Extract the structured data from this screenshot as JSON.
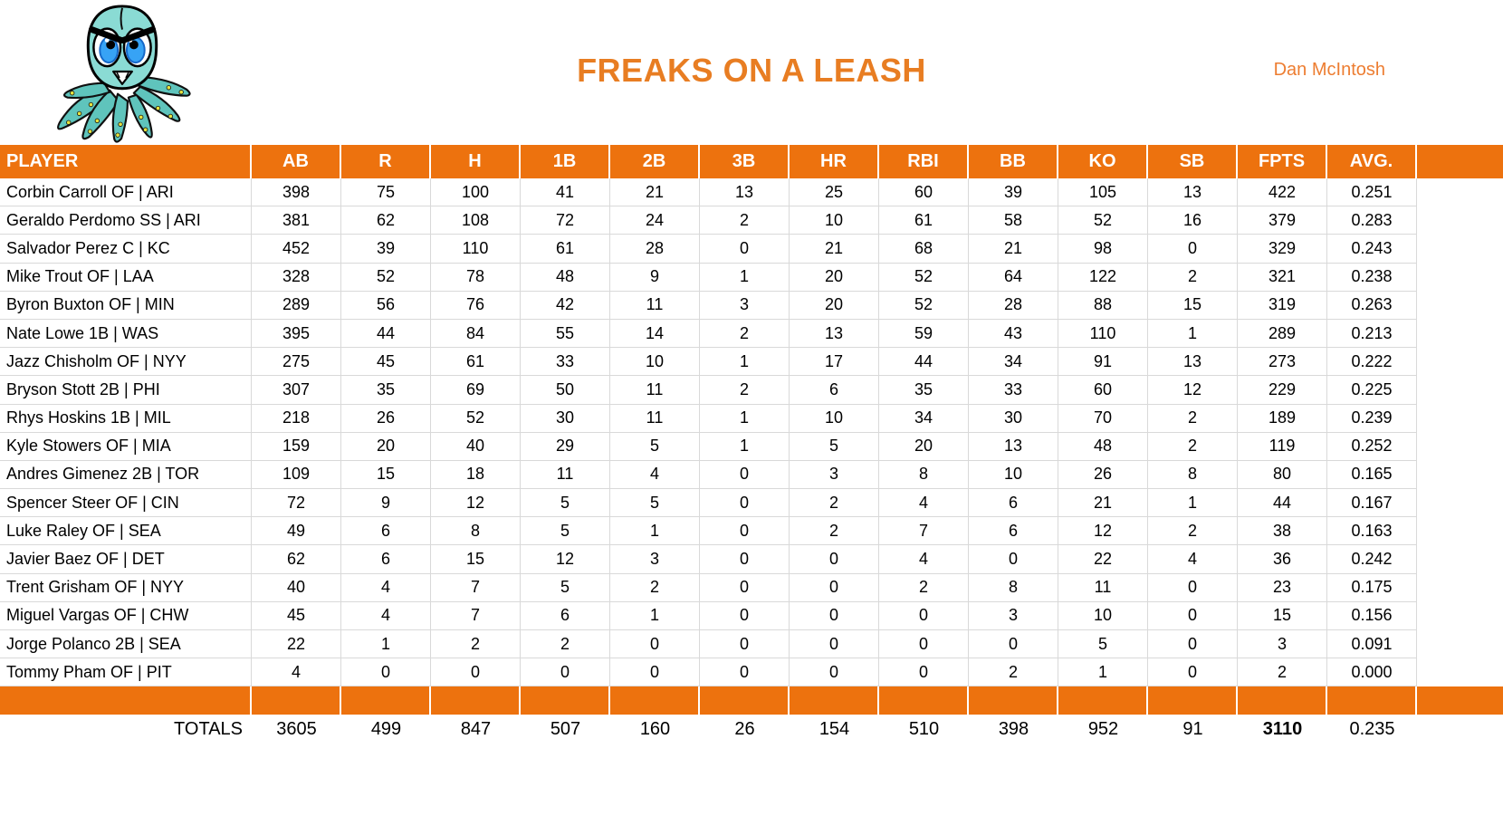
{
  "header": {
    "title": "FREAKS ON A LEASH",
    "owner": "Dan McIntosh",
    "logo_icon": "angry-octopus"
  },
  "colors": {
    "table_orange": "#ED720E",
    "title_orange": "#E87D22",
    "owner_orange": "#ED7D31",
    "grid_line": "#D9D9D9",
    "logo_teal": "#8ADBD4",
    "logo_tentacle": "#5FC4BC",
    "logo_eye_blue": "#37A3F5",
    "logo_sucker_yellow": "#E6E33F"
  },
  "table": {
    "columns": [
      "PLAYER",
      "AB",
      "R",
      "H",
      "1B",
      "2B",
      "3B",
      "HR",
      "RBI",
      "BB",
      "KO",
      "SB",
      "FPTS",
      "AVG."
    ],
    "rows": [
      {
        "player": "Corbin Carroll OF | ARI",
        "values": [
          "398",
          "75",
          "100",
          "41",
          "21",
          "13",
          "25",
          "60",
          "39",
          "105",
          "13",
          "422",
          "0.251"
        ]
      },
      {
        "player": "Geraldo Perdomo SS | ARI",
        "values": [
          "381",
          "62",
          "108",
          "72",
          "24",
          "2",
          "10",
          "61",
          "58",
          "52",
          "16",
          "379",
          "0.283"
        ]
      },
      {
        "player": "Salvador Perez C | KC",
        "values": [
          "452",
          "39",
          "110",
          "61",
          "28",
          "0",
          "21",
          "68",
          "21",
          "98",
          "0",
          "329",
          "0.243"
        ]
      },
      {
        "player": "Mike Trout OF | LAA",
        "values": [
          "328",
          "52",
          "78",
          "48",
          "9",
          "1",
          "20",
          "52",
          "64",
          "122",
          "2",
          "321",
          "0.238"
        ]
      },
      {
        "player": "Byron Buxton OF | MIN",
        "values": [
          "289",
          "56",
          "76",
          "42",
          "11",
          "3",
          "20",
          "52",
          "28",
          "88",
          "15",
          "319",
          "0.263"
        ]
      },
      {
        "player": "Nate Lowe 1B | WAS",
        "values": [
          "395",
          "44",
          "84",
          "55",
          "14",
          "2",
          "13",
          "59",
          "43",
          "110",
          "1",
          "289",
          "0.213"
        ]
      },
      {
        "player": "Jazz Chisholm OF | NYY",
        "values": [
          "275",
          "45",
          "61",
          "33",
          "10",
          "1",
          "17",
          "44",
          "34",
          "91",
          "13",
          "273",
          "0.222"
        ]
      },
      {
        "player": "Bryson Stott 2B | PHI",
        "values": [
          "307",
          "35",
          "69",
          "50",
          "11",
          "2",
          "6",
          "35",
          "33",
          "60",
          "12",
          "229",
          "0.225"
        ]
      },
      {
        "player": "Rhys Hoskins 1B | MIL",
        "values": [
          "218",
          "26",
          "52",
          "30",
          "11",
          "1",
          "10",
          "34",
          "30",
          "70",
          "2",
          "189",
          "0.239"
        ]
      },
      {
        "player": "Kyle Stowers OF | MIA",
        "values": [
          "159",
          "20",
          "40",
          "29",
          "5",
          "1",
          "5",
          "20",
          "13",
          "48",
          "2",
          "119",
          "0.252"
        ]
      },
      {
        "player": "Andres Gimenez 2B | TOR",
        "values": [
          "109",
          "15",
          "18",
          "11",
          "4",
          "0",
          "3",
          "8",
          "10",
          "26",
          "8",
          "80",
          "0.165"
        ]
      },
      {
        "player": "Spencer Steer OF | CIN",
        "values": [
          "72",
          "9",
          "12",
          "5",
          "5",
          "0",
          "2",
          "4",
          "6",
          "21",
          "1",
          "44",
          "0.167"
        ]
      },
      {
        "player": "Luke Raley OF | SEA",
        "values": [
          "49",
          "6",
          "8",
          "5",
          "1",
          "0",
          "2",
          "7",
          "6",
          "12",
          "2",
          "38",
          "0.163"
        ]
      },
      {
        "player": "Javier Baez OF | DET",
        "values": [
          "62",
          "6",
          "15",
          "12",
          "3",
          "0",
          "0",
          "4",
          "0",
          "22",
          "4",
          "36",
          "0.242"
        ]
      },
      {
        "player": "Trent Grisham OF | NYY",
        "values": [
          "40",
          "4",
          "7",
          "5",
          "2",
          "0",
          "0",
          "2",
          "8",
          "11",
          "0",
          "23",
          "0.175"
        ]
      },
      {
        "player": "Miguel Vargas OF | CHW",
        "values": [
          "45",
          "4",
          "7",
          "6",
          "1",
          "0",
          "0",
          "0",
          "3",
          "10",
          "0",
          "15",
          "0.156"
        ]
      },
      {
        "player": "Jorge Polanco 2B | SEA",
        "values": [
          "22",
          "1",
          "2",
          "2",
          "0",
          "0",
          "0",
          "0",
          "0",
          "5",
          "0",
          "3",
          "0.091"
        ]
      },
      {
        "player": "Tommy Pham OF | PIT",
        "values": [
          "4",
          "0",
          "0",
          "0",
          "0",
          "0",
          "0",
          "0",
          "2",
          "1",
          "0",
          "2",
          "0.000"
        ]
      }
    ],
    "totals": {
      "label": "TOTALS",
      "values": [
        "3605",
        "499",
        "847",
        "507",
        "160",
        "26",
        "154",
        "510",
        "398",
        "952",
        "91",
        "3110",
        "0.235"
      ],
      "bold_column": "FPTS"
    }
  }
}
